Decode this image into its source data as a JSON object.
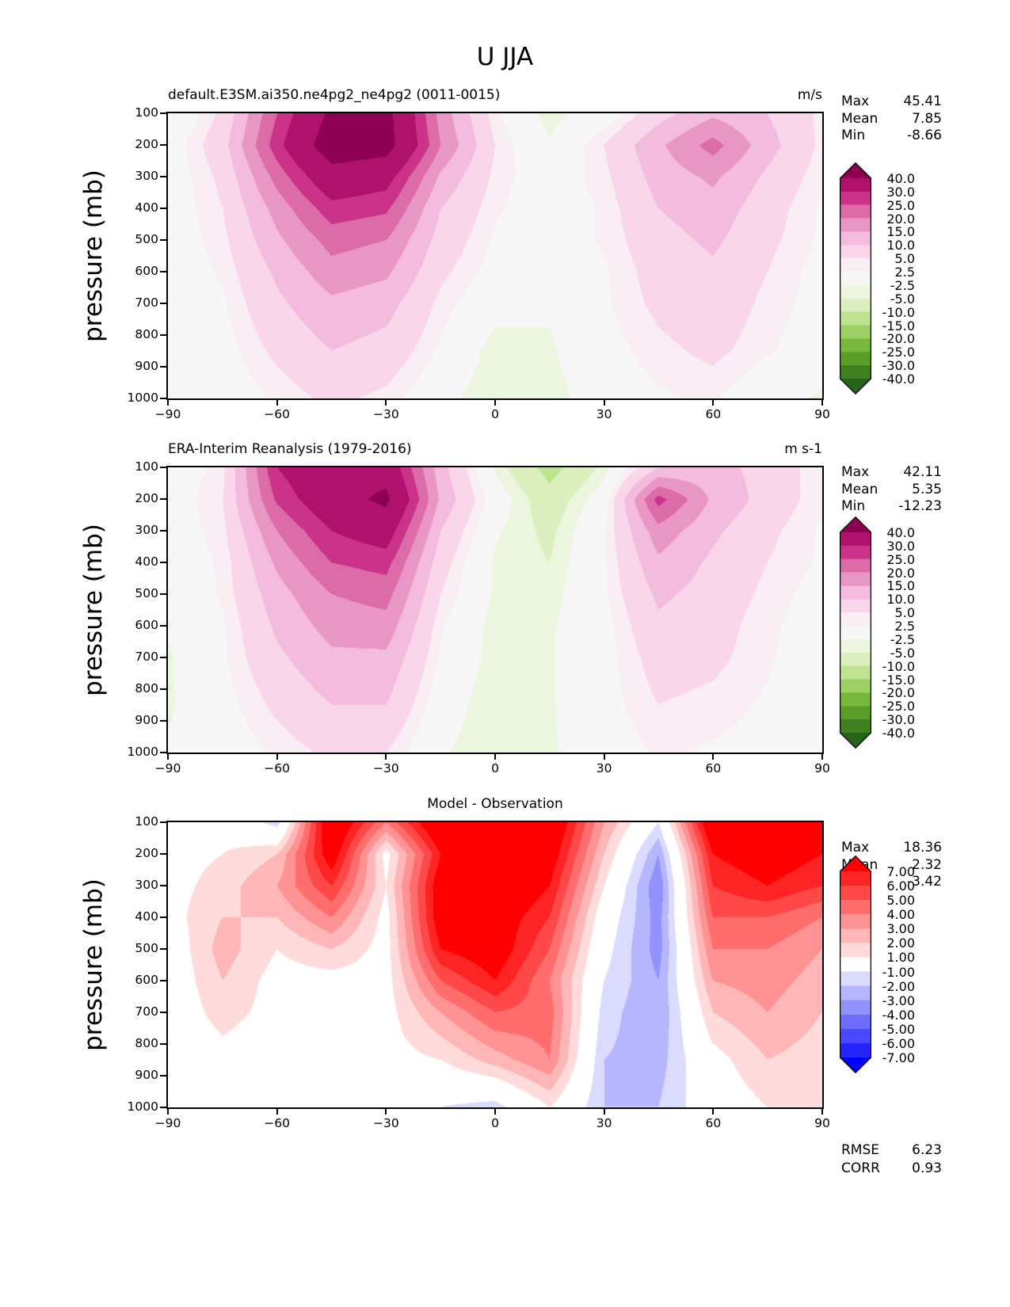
{
  "figure_title": "U JJA",
  "ylabel": "pressure (mb)",
  "axis": {
    "xticks": [
      -90,
      -60,
      -30,
      0,
      30,
      60,
      90
    ],
    "xtick_labels": [
      "−90",
      "−60",
      "−30",
      "0",
      "30",
      "60",
      "90"
    ],
    "yticks": [
      100,
      200,
      300,
      400,
      500,
      600,
      700,
      800,
      900,
      1000
    ],
    "ytick_labels": [
      "100",
      "200",
      "300",
      "400",
      "500",
      "600",
      "700",
      "800",
      "900",
      "1000"
    ],
    "xlim": [
      -90,
      90
    ],
    "ylim": [
      1000,
      100
    ]
  },
  "chart_data": [
    {
      "type": "contour",
      "title": "default.E3SM.ai350.ne4pg2_ne4pg2 (0011-0015)",
      "title_align": "left",
      "units": "m/s",
      "stats": [
        [
          "Max",
          "45.41"
        ],
        [
          "Mean",
          "7.85"
        ],
        [
          "Min",
          "-8.66"
        ]
      ],
      "lat": [
        -90,
        -75,
        -60,
        -45,
        -30,
        -15,
        0,
        15,
        30,
        45,
        60,
        75,
        90
      ],
      "pressure": [
        100,
        200,
        300,
        400,
        500,
        600,
        700,
        850,
        1000
      ],
      "values": [
        [
          -2,
          6,
          25,
          42,
          43,
          18,
          3,
          -4,
          0,
          8,
          14,
          10,
          4
        ],
        [
          0,
          8,
          28,
          46,
          44,
          20,
          5,
          -2,
          5,
          14,
          22,
          12,
          4
        ],
        [
          0,
          6,
          22,
          36,
          33,
          14,
          4,
          0,
          4,
          12,
          16,
          9,
          3
        ],
        [
          0,
          5,
          17,
          28,
          26,
          10,
          3,
          0,
          3,
          10,
          13,
          7,
          2
        ],
        [
          0,
          4,
          14,
          22,
          20,
          8,
          2,
          0,
          3,
          8,
          11,
          6,
          2
        ],
        [
          0,
          3,
          11,
          18,
          16,
          6,
          1,
          -1,
          2,
          7,
          9,
          5,
          1
        ],
        [
          0,
          2,
          9,
          14,
          12,
          4,
          -1,
          -2,
          2,
          6,
          8,
          4,
          1
        ],
        [
          0,
          1,
          6,
          10,
          8,
          2,
          -4,
          -3,
          1,
          4,
          6,
          3,
          0
        ],
        [
          0,
          0,
          3,
          6,
          4,
          -1,
          -5,
          -4,
          0,
          2,
          3,
          -1,
          -3
        ]
      ],
      "levels": [
        -40,
        -30,
        -25,
        -20,
        -15,
        -10,
        -5,
        -2.5,
        2.5,
        5,
        10,
        15,
        20,
        25,
        30,
        40
      ],
      "colors": [
        "#276419",
        "#3F811E",
        "#5A9D29",
        "#79B73D",
        "#9CCF64",
        "#BEE48F",
        "#DBF0BE",
        "#ECF6DF",
        "#F7F7F7",
        "#F9EEF4",
        "#FAD6EA",
        "#F3BBDD",
        "#E897C4",
        "#DB6CA8",
        "#CB3289",
        "#B0116D",
        "#8E0152"
      ],
      "colorbar_ticks": [
        "40.0",
        "30.0",
        "25.0",
        "20.0",
        "15.0",
        "10.0",
        "5.0",
        "2.5",
        "-2.5",
        "-5.0",
        "-10.0",
        "-15.0",
        "-20.0",
        "-25.0",
        "-30.0",
        "-40.0"
      ]
    },
    {
      "type": "contour",
      "title": "ERA-Interim Reanalysis (1979-2016)",
      "title_align": "left",
      "units": "m s-1",
      "stats": [
        [
          "Max",
          "42.11"
        ],
        [
          "Mean",
          "5.35"
        ],
        [
          "Min",
          "-12.23"
        ]
      ],
      "lat": [
        -90,
        -75,
        -60,
        -45,
        -30,
        -15,
        0,
        15,
        30,
        45,
        60,
        75,
        90
      ],
      "pressure": [
        100,
        200,
        300,
        400,
        500,
        600,
        700,
        850,
        1000
      ],
      "values": [
        [
          -1,
          4,
          30,
          38,
          36,
          12,
          -3,
          -12,
          -4,
          10,
          12,
          8,
          3
        ],
        [
          0,
          5,
          26,
          36,
          42,
          14,
          0,
          -8,
          0,
          27,
          14,
          8,
          3
        ],
        [
          0,
          4,
          20,
          30,
          34,
          10,
          -2,
          -6,
          2,
          18,
          11,
          6,
          2
        ],
        [
          0,
          3,
          16,
          25,
          27,
          7,
          -3,
          -5,
          2,
          14,
          9,
          5,
          2
        ],
        [
          -1,
          3,
          13,
          20,
          22,
          5,
          -3,
          -4,
          2,
          11,
          8,
          4,
          1
        ],
        [
          -2,
          2,
          11,
          17,
          18,
          3,
          -4,
          -3,
          1,
          9,
          7,
          3,
          1
        ],
        [
          -3,
          2,
          9,
          14,
          14,
          2,
          -4,
          -3,
          1,
          7,
          6,
          3,
          0
        ],
        [
          -3,
          1,
          6,
          10,
          10,
          0,
          -5,
          -3,
          1,
          5,
          4,
          2,
          0
        ],
        [
          -2,
          0,
          3,
          6,
          5,
          -2,
          -5,
          -3,
          0,
          3,
          2,
          1,
          0
        ]
      ],
      "levels": [
        -40,
        -30,
        -25,
        -20,
        -15,
        -10,
        -5,
        -2.5,
        2.5,
        5,
        10,
        15,
        20,
        25,
        30,
        40
      ],
      "colors": [
        "#276419",
        "#3F811E",
        "#5A9D29",
        "#79B73D",
        "#9CCF64",
        "#BEE48F",
        "#DBF0BE",
        "#ECF6DF",
        "#F7F7F7",
        "#F9EEF4",
        "#FAD6EA",
        "#F3BBDD",
        "#E897C4",
        "#DB6CA8",
        "#CB3289",
        "#B0116D",
        "#8E0152"
      ],
      "colorbar_ticks": [
        "40.0",
        "30.0",
        "25.0",
        "20.0",
        "15.0",
        "10.0",
        "5.0",
        "2.5",
        "-2.5",
        "-5.0",
        "-10.0",
        "-15.0",
        "-20.0",
        "-25.0",
        "-30.0",
        "-40.0"
      ]
    },
    {
      "type": "contour",
      "title": "Model - Observation",
      "title_align": "center",
      "units": "",
      "stats": [
        [
          "Max",
          "18.36"
        ],
        [
          "Mean",
          "2.32"
        ],
        [
          "Min",
          "-3.42"
        ]
      ],
      "extra": [
        [
          "RMSE",
          "6.23"
        ],
        [
          "CORR",
          "0.93"
        ]
      ],
      "lat": [
        -90,
        -75,
        -60,
        -45,
        -30,
        -15,
        0,
        15,
        30,
        45,
        60,
        75,
        90
      ],
      "pressure": [
        100,
        200,
        300,
        400,
        500,
        600,
        700,
        850,
        1000
      ],
      "values": [
        [
          0.5,
          0.5,
          -1.5,
          9,
          4,
          9,
          10,
          9,
          3,
          -1,
          9,
          9,
          8
        ],
        [
          0.5,
          1,
          2,
          8,
          0.5,
          7,
          9,
          8,
          2,
          -3,
          7,
          8,
          7
        ],
        [
          0.5,
          1.5,
          3,
          6,
          1,
          8,
          9,
          7,
          1,
          -3.9,
          6,
          7,
          6
        ],
        [
          0.5,
          2,
          2,
          4,
          0.5,
          8,
          8,
          6,
          0,
          -3.5,
          5,
          5,
          4
        ],
        [
          0,
          2.5,
          1,
          2,
          0.5,
          7,
          8,
          5,
          -0.5,
          -3.5,
          4,
          4,
          3
        ],
        [
          0,
          2,
          0.5,
          0.5,
          0.5,
          5,
          7,
          4,
          -1,
          -3,
          3,
          3.5,
          2.5
        ],
        [
          0,
          1.5,
          0.5,
          0.5,
          0.5,
          3,
          5,
          4.5,
          -1.5,
          -3,
          2,
          3,
          2
        ],
        [
          0,
          0.5,
          0,
          -0.5,
          0.5,
          1,
          2.5,
          4,
          -2,
          -2.5,
          0.5,
          2,
          1.5
        ],
        [
          0,
          0.5,
          -1,
          -1,
          0,
          -1,
          -1.5,
          1,
          -2,
          -2,
          0,
          1,
          1
        ]
      ],
      "levels": [
        -7,
        -6,
        -5,
        -4,
        -3,
        -2,
        -1,
        1,
        2,
        3,
        4,
        5,
        6,
        7
      ],
      "colors": [
        "#0000FF",
        "#2424FF",
        "#4949FF",
        "#6D6DFF",
        "#9292FF",
        "#B6B6FF",
        "#DBDBFF",
        "#FFFFFF",
        "#FFDBDB",
        "#FFB6B6",
        "#FF9292",
        "#FF6D6D",
        "#FF4949",
        "#FF2424",
        "#FF0000"
      ],
      "colorbar_ticks": [
        "7.00",
        "6.00",
        "5.00",
        "4.00",
        "3.00",
        "2.00",
        "1.00",
        "-1.00",
        "-2.00",
        "-3.00",
        "-4.00",
        "-5.00",
        "-6.00",
        "-7.00"
      ]
    }
  ]
}
